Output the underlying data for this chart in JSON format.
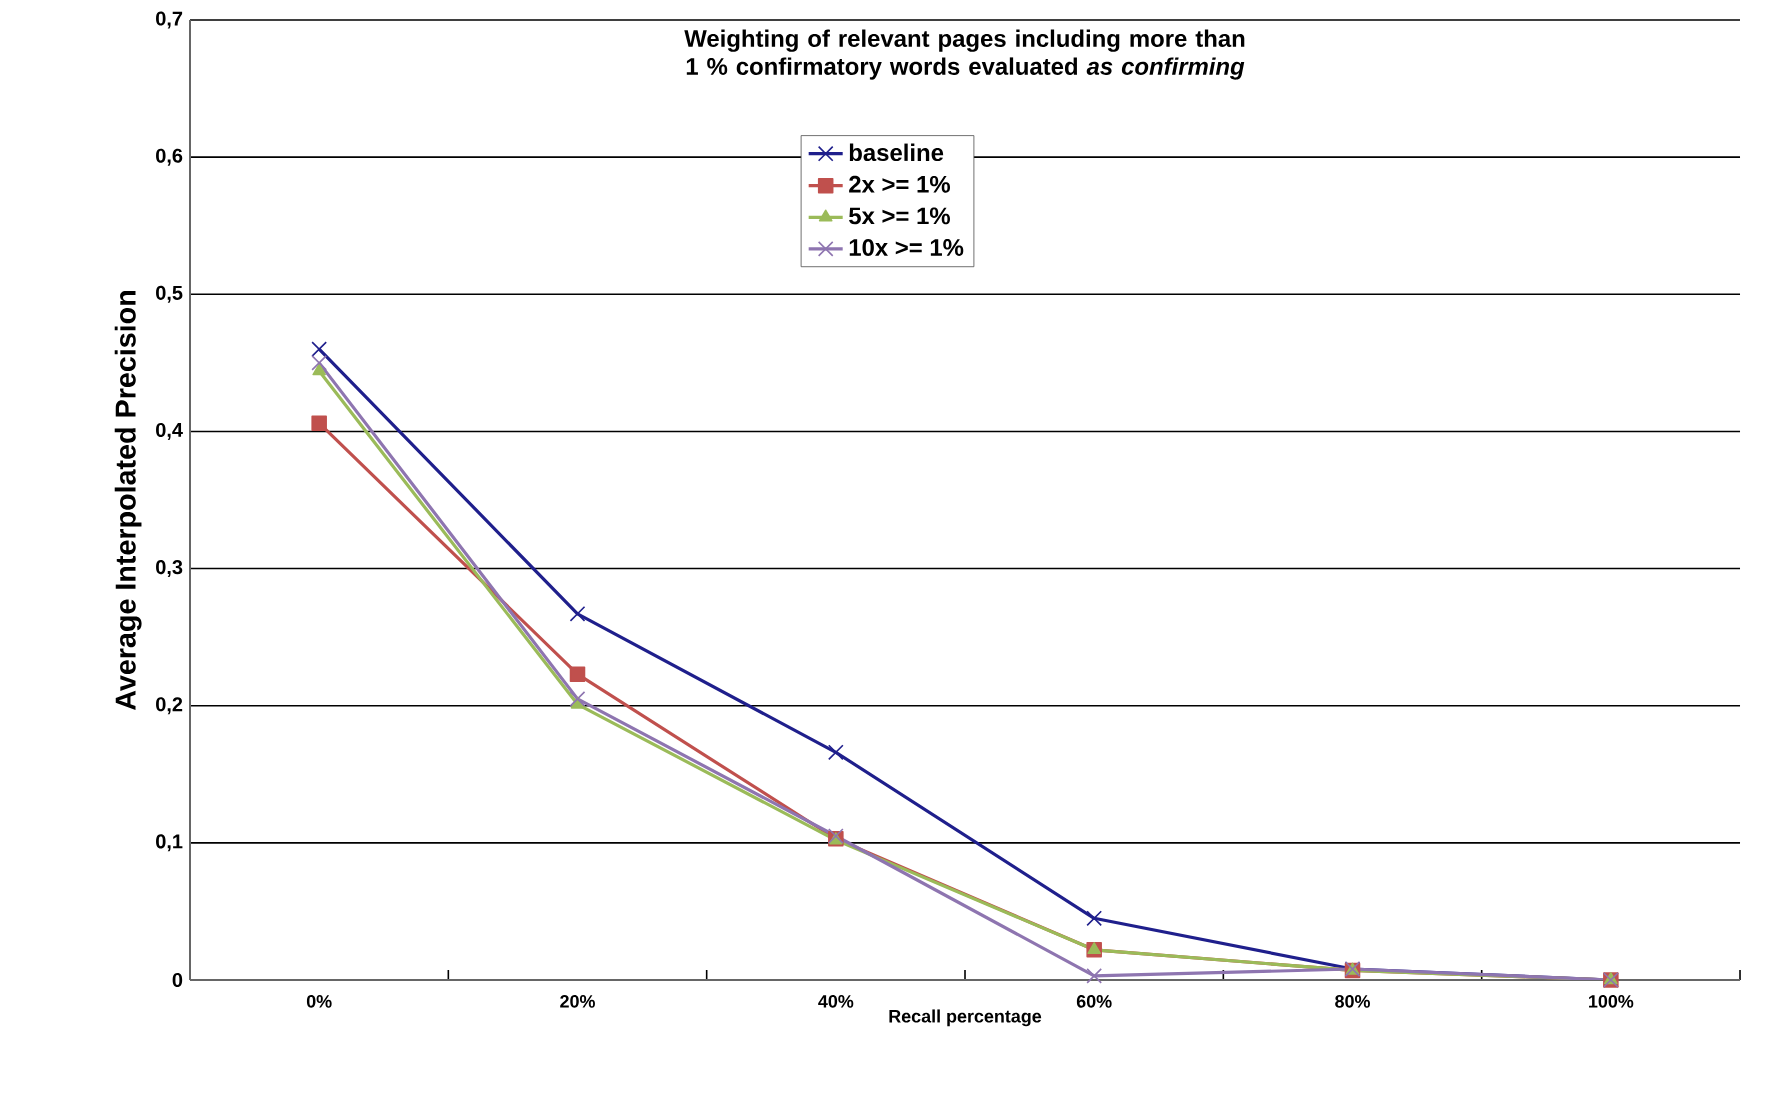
{
  "chart_data": {
    "type": "line",
    "title": "Weighting of relevant pages including more than 1 % confirmatory words evaluated *as confirming*",
    "xlabel": "Recall percentage",
    "ylabel": "Average Interpolated Precision",
    "categories": [
      "0%",
      "20%",
      "40%",
      "60%",
      "80%",
      "100%"
    ],
    "series": [
      {
        "name": "baseline",
        "color": "#1f1f8c",
        "marker": "cross",
        "values": [
          0.46,
          0.267,
          0.166,
          0.045,
          0.008,
          0.0
        ]
      },
      {
        "name": "2x >= 1%",
        "color": "#c0504d",
        "marker": "square",
        "values": [
          0.406,
          0.223,
          0.103,
          0.022,
          0.007,
          0.0
        ]
      },
      {
        "name": "5x >= 1%",
        "color": "#9bbb59",
        "marker": "triangle",
        "values": [
          0.444,
          0.201,
          0.102,
          0.022,
          0.007,
          0.0
        ]
      },
      {
        "name": "10x >= 1%",
        "color": "#8e75b0",
        "marker": "cross",
        "values": [
          0.45,
          0.205,
          0.105,
          0.003,
          0.008,
          0.0
        ]
      }
    ],
    "ylim": [
      0,
      0.7
    ],
    "yticks": [
      {
        "value": 0,
        "label": "0"
      },
      {
        "value": 0.1,
        "label": "0,1"
      },
      {
        "value": 0.2,
        "label": "0,2"
      },
      {
        "value": 0.3,
        "label": "0,3"
      },
      {
        "value": 0.4,
        "label": "0,4"
      },
      {
        "value": 0.5,
        "label": "0,5"
      },
      {
        "value": 0.6,
        "label": "0,6"
      },
      {
        "value": 0.7,
        "label": "0,7"
      }
    ],
    "grid": "y",
    "legend": "top",
    "line_style": "solid"
  }
}
